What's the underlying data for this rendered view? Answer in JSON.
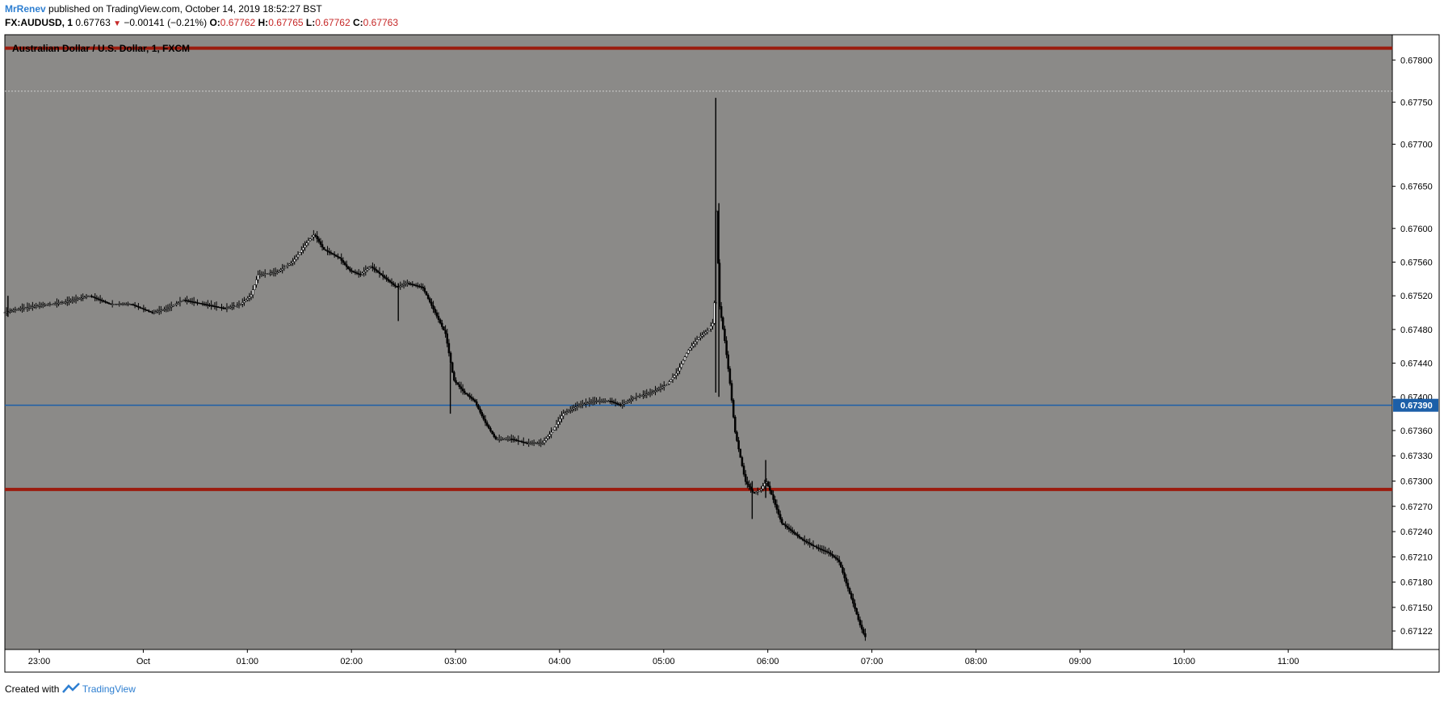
{
  "header": {
    "author": "MrRenev",
    "published_text": "published on TradingView.com, October 14, 2019 18:52:27 BST",
    "symbol": "FX:AUDUSD, 1",
    "last_price": "0.67763",
    "change": "−0.00141 (−0.21%)",
    "o_label": "O:",
    "o_value": "0.67762",
    "h_label": "H:",
    "h_value": "0.67765",
    "l_label": "L:",
    "l_value": "0.67762",
    "c_label": "C:",
    "c_value": "0.67763"
  },
  "footer": {
    "created_with": "Created with",
    "brand": "TradingView"
  },
  "colors": {
    "chart_bg": "#8b8a88",
    "candle": "#000000",
    "resistance": "#9b1b0e",
    "current_price_line": "#1c5fa8",
    "price_badge": "#1c5fa8",
    "up_arrow": "#c62828"
  },
  "chart_data": {
    "type": "candlestick",
    "title": "Australian Dollar / U.S. Dollar, 1, FXCM",
    "ylim": [
      0.671,
      0.6783
    ],
    "y_ticks": [
      0.678,
      0.6775,
      0.677,
      0.6765,
      0.676,
      0.6756,
      0.6752,
      0.6748,
      0.6744,
      0.674,
      0.6736,
      0.6733,
      0.673,
      0.6727,
      0.6724,
      0.6721,
      0.6718,
      0.6715,
      0.67122
    ],
    "y_tick_labels": [
      "0.67800",
      "0.67750",
      "0.67700",
      "0.67650",
      "0.67600",
      "0.67560",
      "0.67520",
      "0.67480",
      "0.67440",
      "0.67400",
      "0.67360",
      "0.67330",
      "0.67300",
      "0.67270",
      "0.67240",
      "0.67210",
      "0.67180",
      "0.67150",
      "0.67122"
    ],
    "x_range_hours": [
      -1.33,
      12.0
    ],
    "x_ticks": [
      {
        "t": -1.0,
        "label": "23:00"
      },
      {
        "t": 0.0,
        "label": "Oct"
      },
      {
        "t": 1.0,
        "label": "01:00"
      },
      {
        "t": 2.0,
        "label": "02:00"
      },
      {
        "t": 3.0,
        "label": "03:00"
      },
      {
        "t": 4.0,
        "label": "04:00"
      },
      {
        "t": 5.0,
        "label": "05:00"
      },
      {
        "t": 6.0,
        "label": "06:00"
      },
      {
        "t": 7.0,
        "label": "07:00"
      },
      {
        "t": 8.0,
        "label": "08:00"
      },
      {
        "t": 9.0,
        "label": "09:00"
      },
      {
        "t": 10.0,
        "label": "10:00"
      },
      {
        "t": 11.0,
        "label": "11:00"
      }
    ],
    "horizontal_lines": [
      {
        "price": 0.67814,
        "style": "resistance"
      },
      {
        "price": 0.6729,
        "style": "resistance"
      },
      {
        "price": 0.6739,
        "style": "current"
      },
      {
        "price": 0.67763,
        "style": "dotted"
      }
    ],
    "current_price_label": "0.67390",
    "price_path": [
      {
        "t": -1.33,
        "p": 0.675
      },
      {
        "t": -1.15,
        "p": 0.67505
      },
      {
        "t": -1.0,
        "p": 0.67508
      },
      {
        "t": -0.75,
        "p": 0.67512
      },
      {
        "t": -0.5,
        "p": 0.6752
      },
      {
        "t": -0.3,
        "p": 0.6751
      },
      {
        "t": -0.1,
        "p": 0.6751
      },
      {
        "t": 0.1,
        "p": 0.675
      },
      {
        "t": 0.25,
        "p": 0.67505
      },
      {
        "t": 0.4,
        "p": 0.67515
      },
      {
        "t": 0.6,
        "p": 0.6751
      },
      {
        "t": 0.8,
        "p": 0.67505
      },
      {
        "t": 0.95,
        "p": 0.6751
      },
      {
        "t": 1.05,
        "p": 0.6752
      },
      {
        "t": 1.12,
        "p": 0.67545
      },
      {
        "t": 1.3,
        "p": 0.67548
      },
      {
        "t": 1.45,
        "p": 0.6756
      },
      {
        "t": 1.6,
        "p": 0.67585
      },
      {
        "t": 1.66,
        "p": 0.67593
      },
      {
        "t": 1.75,
        "p": 0.67575
      },
      {
        "t": 1.9,
        "p": 0.67565
      },
      {
        "t": 2.0,
        "p": 0.6755
      },
      {
        "t": 2.1,
        "p": 0.67545
      },
      {
        "t": 2.2,
        "p": 0.67555
      },
      {
        "t": 2.3,
        "p": 0.67545
      },
      {
        "t": 2.45,
        "p": 0.6753
      },
      {
        "t": 2.55,
        "p": 0.67535
      },
      {
        "t": 2.7,
        "p": 0.6753
      },
      {
        "t": 2.8,
        "p": 0.67505
      },
      {
        "t": 2.92,
        "p": 0.67475
      },
      {
        "t": 3.0,
        "p": 0.6742
      },
      {
        "t": 3.1,
        "p": 0.67405
      },
      {
        "t": 3.2,
        "p": 0.67395
      },
      {
        "t": 3.3,
        "p": 0.6737
      },
      {
        "t": 3.4,
        "p": 0.6735
      },
      {
        "t": 3.55,
        "p": 0.6735
      },
      {
        "t": 3.7,
        "p": 0.67345
      },
      {
        "t": 3.85,
        "p": 0.67345
      },
      {
        "t": 3.95,
        "p": 0.6736
      },
      {
        "t": 4.05,
        "p": 0.6738
      },
      {
        "t": 4.2,
        "p": 0.6739
      },
      {
        "t": 4.35,
        "p": 0.67395
      },
      {
        "t": 4.5,
        "p": 0.67395
      },
      {
        "t": 4.6,
        "p": 0.6739
      },
      {
        "t": 4.75,
        "p": 0.674
      },
      {
        "t": 4.9,
        "p": 0.67405
      },
      {
        "t": 5.05,
        "p": 0.67415
      },
      {
        "t": 5.15,
        "p": 0.6743
      },
      {
        "t": 5.25,
        "p": 0.67455
      },
      {
        "t": 5.35,
        "p": 0.6747
      },
      {
        "t": 5.45,
        "p": 0.6748
      },
      {
        "t": 5.5,
        "p": 0.6749
      },
      {
        "t": 5.52,
        "p": 0.6762
      },
      {
        "t": 5.55,
        "p": 0.6751
      },
      {
        "t": 5.6,
        "p": 0.6747
      },
      {
        "t": 5.65,
        "p": 0.6742
      },
      {
        "t": 5.7,
        "p": 0.6736
      },
      {
        "t": 5.8,
        "p": 0.673
      },
      {
        "t": 5.88,
        "p": 0.67285
      },
      {
        "t": 5.95,
        "p": 0.6729
      },
      {
        "t": 6.0,
        "p": 0.673
      },
      {
        "t": 6.05,
        "p": 0.67285
      },
      {
        "t": 6.15,
        "p": 0.6725
      },
      {
        "t": 6.25,
        "p": 0.6724
      },
      {
        "t": 6.35,
        "p": 0.6723
      },
      {
        "t": 6.5,
        "p": 0.6722
      },
      {
        "t": 6.6,
        "p": 0.67215
      },
      {
        "t": 6.7,
        "p": 0.67205
      },
      {
        "t": 6.78,
        "p": 0.67175
      },
      {
        "t": 6.85,
        "p": 0.6715
      },
      {
        "t": 6.9,
        "p": 0.6713
      },
      {
        "t": 6.95,
        "p": 0.67115
      }
    ],
    "spikes": [
      {
        "t": 5.5,
        "high": 0.67755,
        "low": 0.67405
      },
      {
        "t": 5.53,
        "high": 0.6763,
        "low": 0.674
      },
      {
        "t": 2.95,
        "high": 0.6744,
        "low": 0.6738
      },
      {
        "t": 2.45,
        "high": 0.67535,
        "low": 0.6749
      },
      {
        "t": 5.85,
        "high": 0.673,
        "low": 0.67255
      },
      {
        "t": 5.98,
        "high": 0.67325,
        "low": 0.6728
      },
      {
        "t": -1.3,
        "high": 0.6752,
        "low": 0.67495
      }
    ]
  }
}
